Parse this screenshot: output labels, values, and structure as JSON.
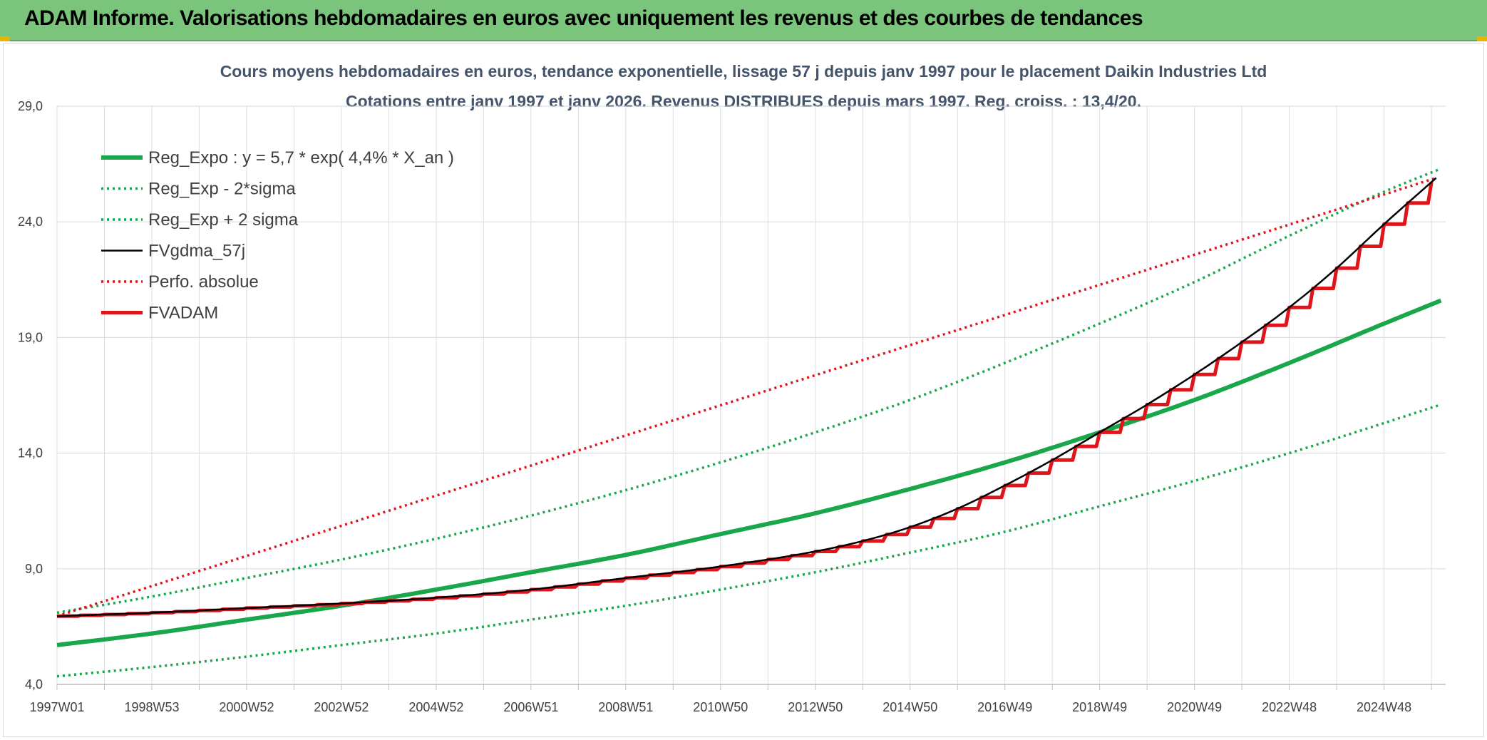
{
  "header": {
    "title": "ADAM Informe. Valorisations hebdomadaires en euros avec uniquement les revenus et des courbes de tendances"
  },
  "chart_data": {
    "type": "line",
    "title": "Cours moyens hebdomadaires en euros, tendance exponentielle, lissage 57 j depuis janv 1997 pour le placement Daikin Industries Ltd",
    "subtitle": "Cotations entre janv 1997 et janv 2026. Revenus DISTRIBUES depuis mars 1997. Reg. croiss. : 13,4/20.",
    "xlabel": "",
    "ylabel": "",
    "x_range": [
      1997.0,
      2026.0
    ],
    "ylim": [
      4.0,
      29.0
    ],
    "y_ticks": [
      "4,0",
      "9,0",
      "14,0",
      "19,0",
      "24,0",
      "29,0"
    ],
    "y_tick_values": [
      4,
      9,
      14,
      19,
      24,
      29
    ],
    "x_ticks": [
      "1997W01",
      "1998W53",
      "2000W52",
      "2002W52",
      "2004W52",
      "2006W51",
      "2008W51",
      "2010W50",
      "2012W50",
      "2014W50",
      "2016W49",
      "2018W49",
      "2020W49",
      "2022W48",
      "2024W48"
    ],
    "x_tick_values": [
      1997.0,
      1999.0,
      2001.0,
      2003.0,
      2005.0,
      2007.0,
      2009.0,
      2011.0,
      2013.0,
      2015.0,
      2017.0,
      2019.0,
      2021.0,
      2023.0,
      2025.0
    ],
    "grid": true,
    "legend_position": "top-left",
    "colors": {
      "green": "#1aa64a",
      "red": "#e0141b",
      "black": "#000000",
      "grid": "#d9dee6"
    },
    "series": [
      {
        "name": "Reg_Expo : y = 5,7 * exp( 4,4% *  X_an )",
        "style": "solid-thick",
        "color": "#1aa64a",
        "x": [
          1997,
          1999,
          2001,
          2003,
          2005,
          2007,
          2009,
          2011,
          2013,
          2015,
          2017,
          2019,
          2021,
          2023,
          2025,
          2026.2
        ],
        "values": [
          5.7,
          6.2,
          6.8,
          7.4,
          8.1,
          8.85,
          9.6,
          10.5,
          11.4,
          12.45,
          13.6,
          14.9,
          16.3,
          17.9,
          19.6,
          20.6
        ]
      },
      {
        "name": "Reg_Exp - 2*sigma",
        "style": "dotted",
        "color": "#1aa64a",
        "x": [
          1997,
          1999,
          2001,
          2003,
          2005,
          2007,
          2009,
          2011,
          2013,
          2015,
          2017,
          2019,
          2021,
          2023,
          2025,
          2026.2
        ],
        "values": [
          4.35,
          4.75,
          5.2,
          5.7,
          6.2,
          6.8,
          7.4,
          8.1,
          8.85,
          9.7,
          10.6,
          11.7,
          12.8,
          14.0,
          15.3,
          16.1
        ]
      },
      {
        "name": "Reg_Exp + 2 sigma",
        "style": "dotted",
        "color": "#1aa64a",
        "x": [
          1997,
          1999,
          2001,
          2003,
          2005,
          2007,
          2009,
          2011,
          2013,
          2015,
          2017,
          2019,
          2021,
          2023,
          2025,
          2026.2
        ],
        "values": [
          7.1,
          7.8,
          8.6,
          9.4,
          10.3,
          11.3,
          12.4,
          13.6,
          14.9,
          16.3,
          17.9,
          19.6,
          21.4,
          23.4,
          25.3,
          26.3
        ]
      },
      {
        "name": "FVgdma_57j",
        "style": "solid",
        "color": "#000000",
        "x": [
          1997,
          1999,
          2001,
          2003,
          2005,
          2007,
          2009,
          2011,
          2013,
          2014,
          2015,
          2016,
          2017,
          2018,
          2019,
          2020,
          2021,
          2022,
          2023,
          2024,
          2025,
          2026.1
        ],
        "values": [
          6.95,
          7.1,
          7.3,
          7.5,
          7.75,
          8.1,
          8.6,
          9.1,
          9.75,
          10.2,
          10.8,
          11.6,
          12.6,
          13.7,
          14.9,
          16.1,
          17.4,
          18.8,
          20.3,
          22.0,
          23.9,
          25.9
        ]
      },
      {
        "name": "Perfo. absolue",
        "style": "dotted",
        "color": "#e0141b",
        "x": [
          1997,
          2026.1
        ],
        "values": [
          6.95,
          25.9
        ]
      },
      {
        "name": "FVADAM",
        "style": "staircase-thick",
        "color": "#e0141b",
        "x": [
          1997,
          1999,
          2001,
          2003,
          2005,
          2007,
          2009,
          2011,
          2013,
          2014,
          2015,
          2016,
          2017,
          2018,
          2019,
          2020,
          2021,
          2022,
          2023,
          2024,
          2025,
          2026.1
        ],
        "values": [
          6.95,
          7.1,
          7.3,
          7.5,
          7.75,
          8.1,
          8.6,
          9.1,
          9.75,
          10.2,
          10.8,
          11.6,
          12.6,
          13.7,
          14.9,
          16.1,
          17.4,
          18.8,
          20.3,
          22.0,
          23.9,
          25.9
        ]
      }
    ]
  }
}
